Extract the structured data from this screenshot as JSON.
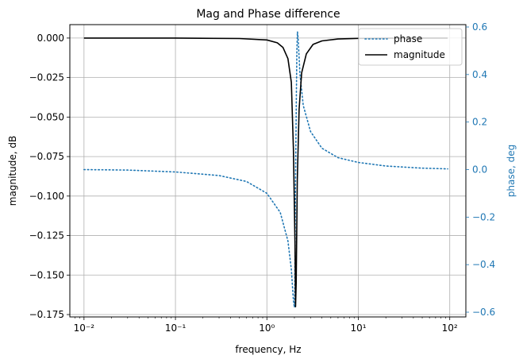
{
  "chart_data": {
    "type": "line",
    "title": "Mag and Phase difference",
    "xlabel": "frequency, Hz",
    "ylabel": "magnitude, dB",
    "y2label": "phase, deg",
    "xscale": "log",
    "xlim": [
      0.007,
      150
    ],
    "ylim": [
      -0.1765,
      0.0085
    ],
    "y2lim": [
      -0.62,
      0.61
    ],
    "xticks": [
      0.01,
      0.1,
      1,
      10,
      100
    ],
    "xtick_labels": [
      "10⁻²",
      "10⁻¹",
      "10⁰",
      "10¹",
      "10²"
    ],
    "yticks": [
      0.0,
      -0.025,
      -0.05,
      -0.075,
      -0.1,
      -0.125,
      -0.15,
      -0.175
    ],
    "ytick_labels": [
      "0.000",
      "−0.025",
      "−0.050",
      "−0.075",
      "−0.100",
      "−0.125",
      "−0.150",
      "−0.175"
    ],
    "y2ticks": [
      0.6,
      0.4,
      0.2,
      0.0,
      -0.2,
      -0.4,
      -0.6
    ],
    "y2tick_labels": [
      "0.6",
      "0.4",
      "0.2",
      "0.0",
      "−0.2",
      "−0.4",
      "−0.6"
    ],
    "grid": true,
    "legend_position": "top-right",
    "series": [
      {
        "name": "phase",
        "axis": "right",
        "style": "dotted",
        "color": "#1f77b4",
        "x": [
          0.01,
          0.03,
          0.1,
          0.3,
          0.6,
          1.0,
          1.4,
          1.7,
          1.85,
          1.95,
          2.0,
          2.02,
          2.05,
          2.1,
          2.13,
          2.16,
          2.2,
          2.3,
          2.5,
          3.0,
          4.0,
          6.0,
          10.0,
          20.0,
          50.0,
          95.0
        ],
        "values": [
          0.0,
          -0.002,
          -0.01,
          -0.025,
          -0.05,
          -0.1,
          -0.18,
          -0.3,
          -0.42,
          -0.55,
          -0.58,
          -0.5,
          -0.1,
          0.3,
          0.5,
          0.58,
          0.55,
          0.4,
          0.27,
          0.16,
          0.09,
          0.05,
          0.03,
          0.015,
          0.006,
          0.003
        ]
      },
      {
        "name": "magnitude",
        "axis": "left",
        "style": "solid",
        "color": "#000000",
        "x": [
          0.01,
          0.1,
          0.5,
          1.0,
          1.3,
          1.5,
          1.7,
          1.85,
          1.95,
          2.03,
          2.06,
          2.09,
          2.15,
          2.25,
          2.4,
          2.7,
          3.2,
          4.0,
          6.0,
          10.0,
          30.0,
          95.0
        ],
        "values": [
          0.0,
          0.0,
          -0.0003,
          -0.0012,
          -0.003,
          -0.006,
          -0.013,
          -0.028,
          -0.07,
          -0.13,
          -0.17,
          -0.155,
          -0.09,
          -0.045,
          -0.022,
          -0.01,
          -0.004,
          -0.0018,
          -0.0006,
          -0.0002,
          0.0,
          0.0
        ]
      }
    ]
  }
}
